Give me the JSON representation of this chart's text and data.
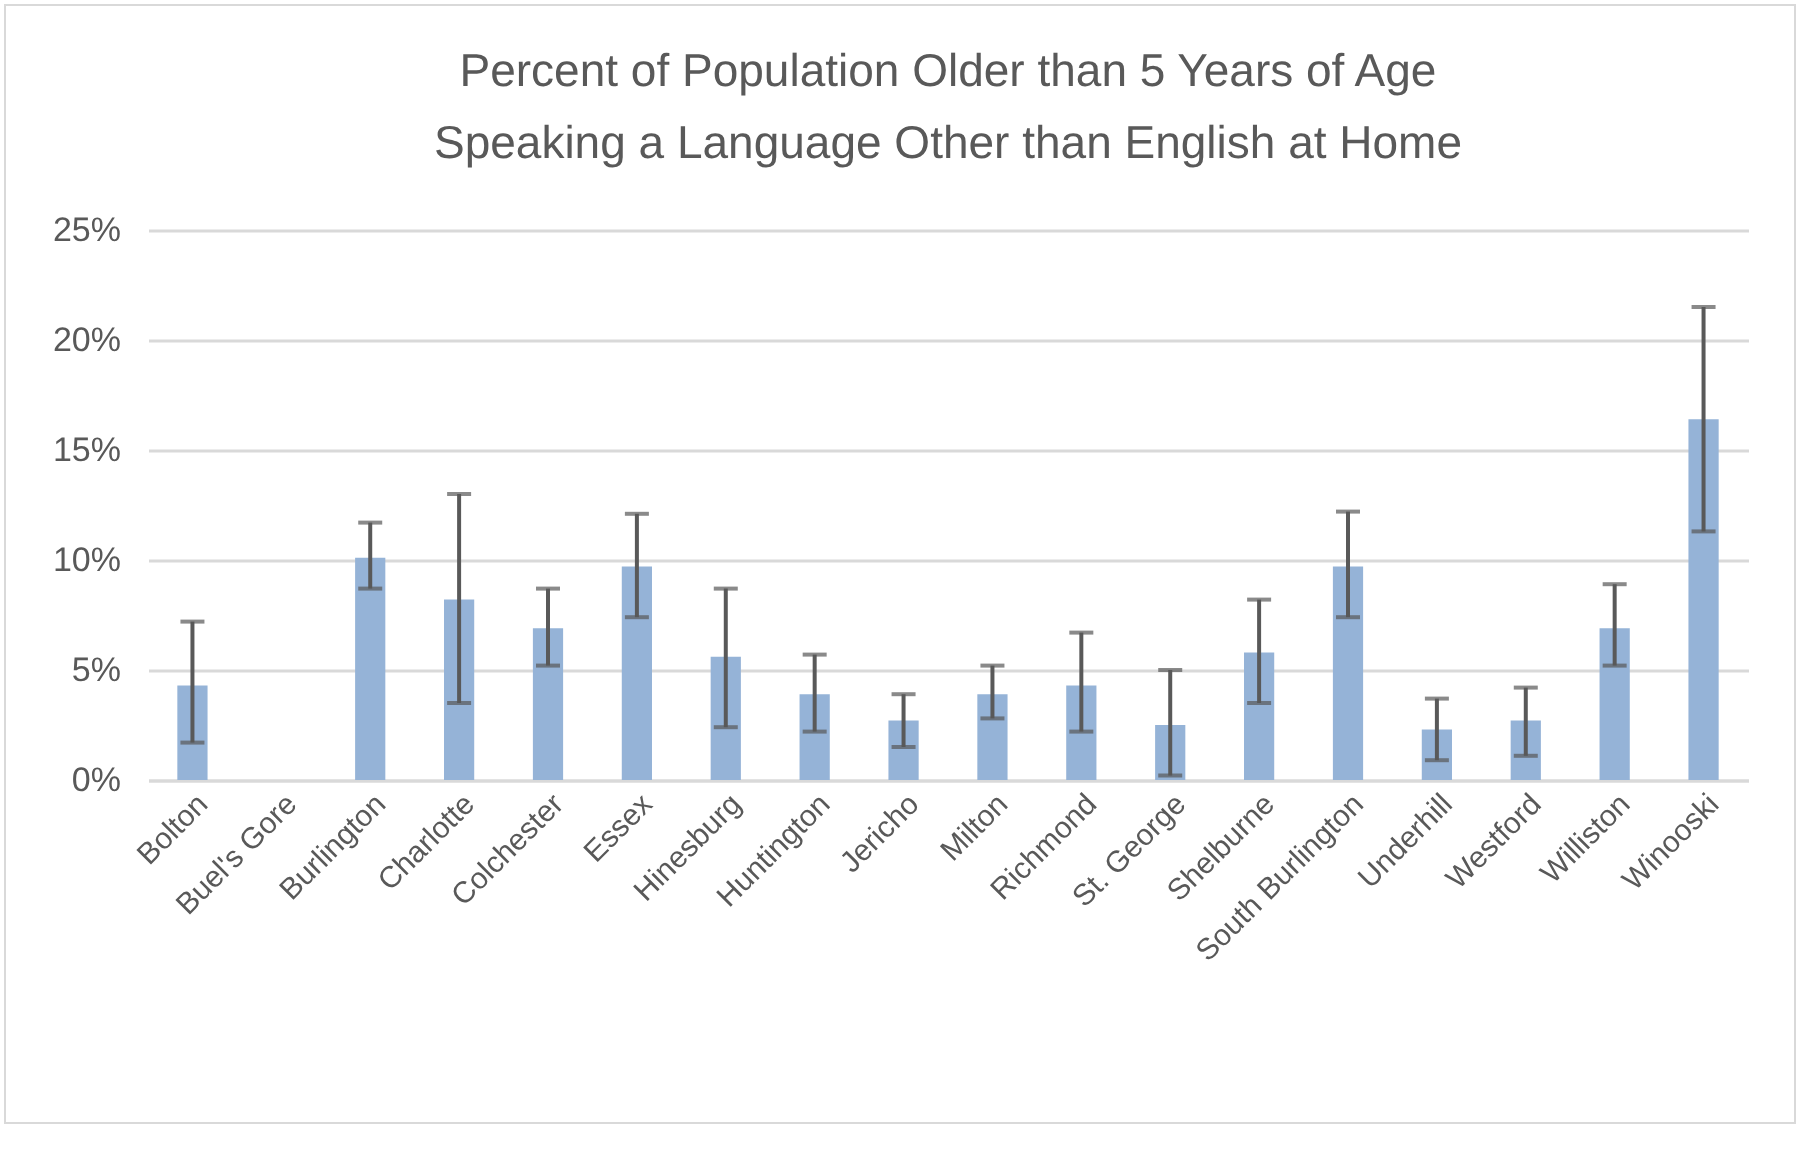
{
  "chart_data": {
    "type": "bar",
    "title": "Percent of Population Older than 5 Years of Age Speaking a Language Other than English at Home",
    "categories": [
      "Bolton",
      "Buel's Gore",
      "Burlington",
      "Charlotte",
      "Colchester",
      "Essex",
      "Hinesburg",
      "Huntington",
      "Jericho",
      "Milton",
      "Richmond",
      "St. George",
      "Shelburne",
      "South Burlington",
      "Underhill",
      "Westford",
      "Williston",
      "Winooski"
    ],
    "values": [
      4.3,
      null,
      10.1,
      8.2,
      6.9,
      9.7,
      5.6,
      3.9,
      2.7,
      3.9,
      4.3,
      2.5,
      5.8,
      9.7,
      2.3,
      2.7,
      6.9,
      16.4
    ],
    "errors": [
      [
        1.7,
        7.2
      ],
      null,
      [
        8.7,
        11.7
      ],
      [
        3.5,
        13.0
      ],
      [
        5.2,
        8.7
      ],
      [
        7.4,
        12.1
      ],
      [
        2.4,
        8.7
      ],
      [
        2.2,
        5.7
      ],
      [
        1.5,
        3.9
      ],
      [
        2.8,
        5.2
      ],
      [
        2.2,
        6.7
      ],
      [
        0.2,
        5.0
      ],
      [
        3.5,
        8.2
      ],
      [
        7.4,
        12.2
      ],
      [
        0.9,
        3.7
      ],
      [
        1.1,
        4.2
      ],
      [
        5.2,
        8.9
      ],
      [
        11.3,
        21.5
      ]
    ],
    "color": "#95b3d7",
    "ylim": [
      0,
      25
    ],
    "yticks": [
      {
        "value": 0,
        "label": "0%"
      },
      {
        "value": 5,
        "label": "5%"
      },
      {
        "value": 10,
        "label": "10%"
      },
      {
        "value": 15,
        "label": "15%"
      },
      {
        "value": 20,
        "label": "20%"
      },
      {
        "value": 25,
        "label": "25%"
      }
    ],
    "grid": "y"
  }
}
